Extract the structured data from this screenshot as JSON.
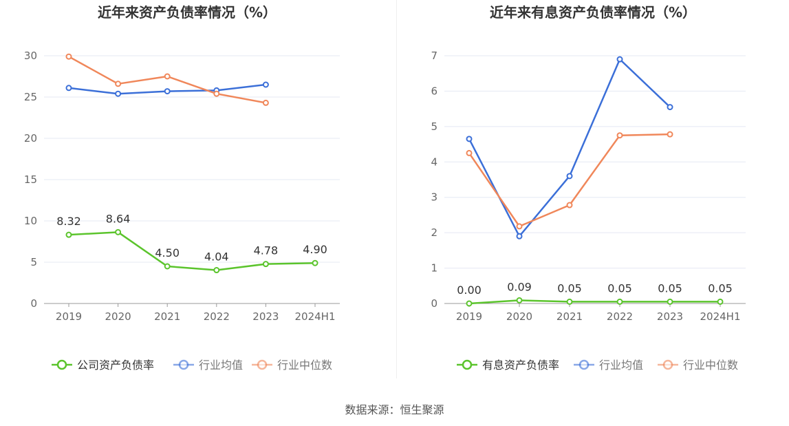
{
  "source_label": "数据来源：恒生聚源",
  "colors": {
    "company": "#5bc42c",
    "industry_avg": "#3b6fd8",
    "industry_median": "#f0875a",
    "grid": "#e4e8f3",
    "axis": "#999999",
    "tick_text": "#666666",
    "title": "#333333"
  },
  "chart_data": [
    {
      "type": "line",
      "title": "近年来资产负债率情况（%）",
      "categories": [
        "2019",
        "2020",
        "2021",
        "2022",
        "2023",
        "2024H1"
      ],
      "ylim": [
        0,
        30
      ],
      "yticks": [
        0,
        5,
        10,
        15,
        20,
        25,
        30
      ],
      "grid": true,
      "legend_position": "bottom-center",
      "series": [
        {
          "name": "公司资产负债率",
          "color_key": "company",
          "labels": true,
          "values": [
            8.32,
            8.64,
            4.5,
            4.04,
            4.78,
            4.9
          ],
          "label_text": [
            "8.32",
            "8.64",
            "4.50",
            "4.04",
            "4.78",
            "4.90"
          ]
        },
        {
          "name": "行业均值",
          "color_key": "industry_avg",
          "labels": false,
          "values": [
            26.1,
            25.4,
            25.7,
            25.8,
            26.5,
            null
          ]
        },
        {
          "name": "行业中位数",
          "color_key": "industry_median",
          "labels": false,
          "values": [
            29.9,
            26.6,
            27.5,
            25.4,
            24.3,
            null
          ]
        }
      ]
    },
    {
      "type": "line",
      "title": "近年来有息资产负债率情况（%）",
      "categories": [
        "2019",
        "2020",
        "2021",
        "2022",
        "2023",
        "2024H1"
      ],
      "ylim": [
        0,
        7
      ],
      "yticks": [
        0,
        1,
        2,
        3,
        4,
        5,
        6,
        7
      ],
      "grid": true,
      "legend_position": "bottom-center",
      "series": [
        {
          "name": "有息资产负债率",
          "color_key": "company",
          "labels": true,
          "values": [
            0.0,
            0.09,
            0.05,
            0.05,
            0.05,
            0.05
          ],
          "label_text": [
            "0.00",
            "0.09",
            "0.05",
            "0.05",
            "0.05",
            "0.05"
          ]
        },
        {
          "name": "行业均值",
          "color_key": "industry_avg",
          "labels": false,
          "values": [
            4.65,
            1.9,
            3.6,
            6.9,
            5.55,
            null
          ]
        },
        {
          "name": "行业中位数",
          "color_key": "industry_median",
          "labels": false,
          "values": [
            4.25,
            2.18,
            2.78,
            4.75,
            4.78,
            null
          ]
        }
      ]
    }
  ]
}
